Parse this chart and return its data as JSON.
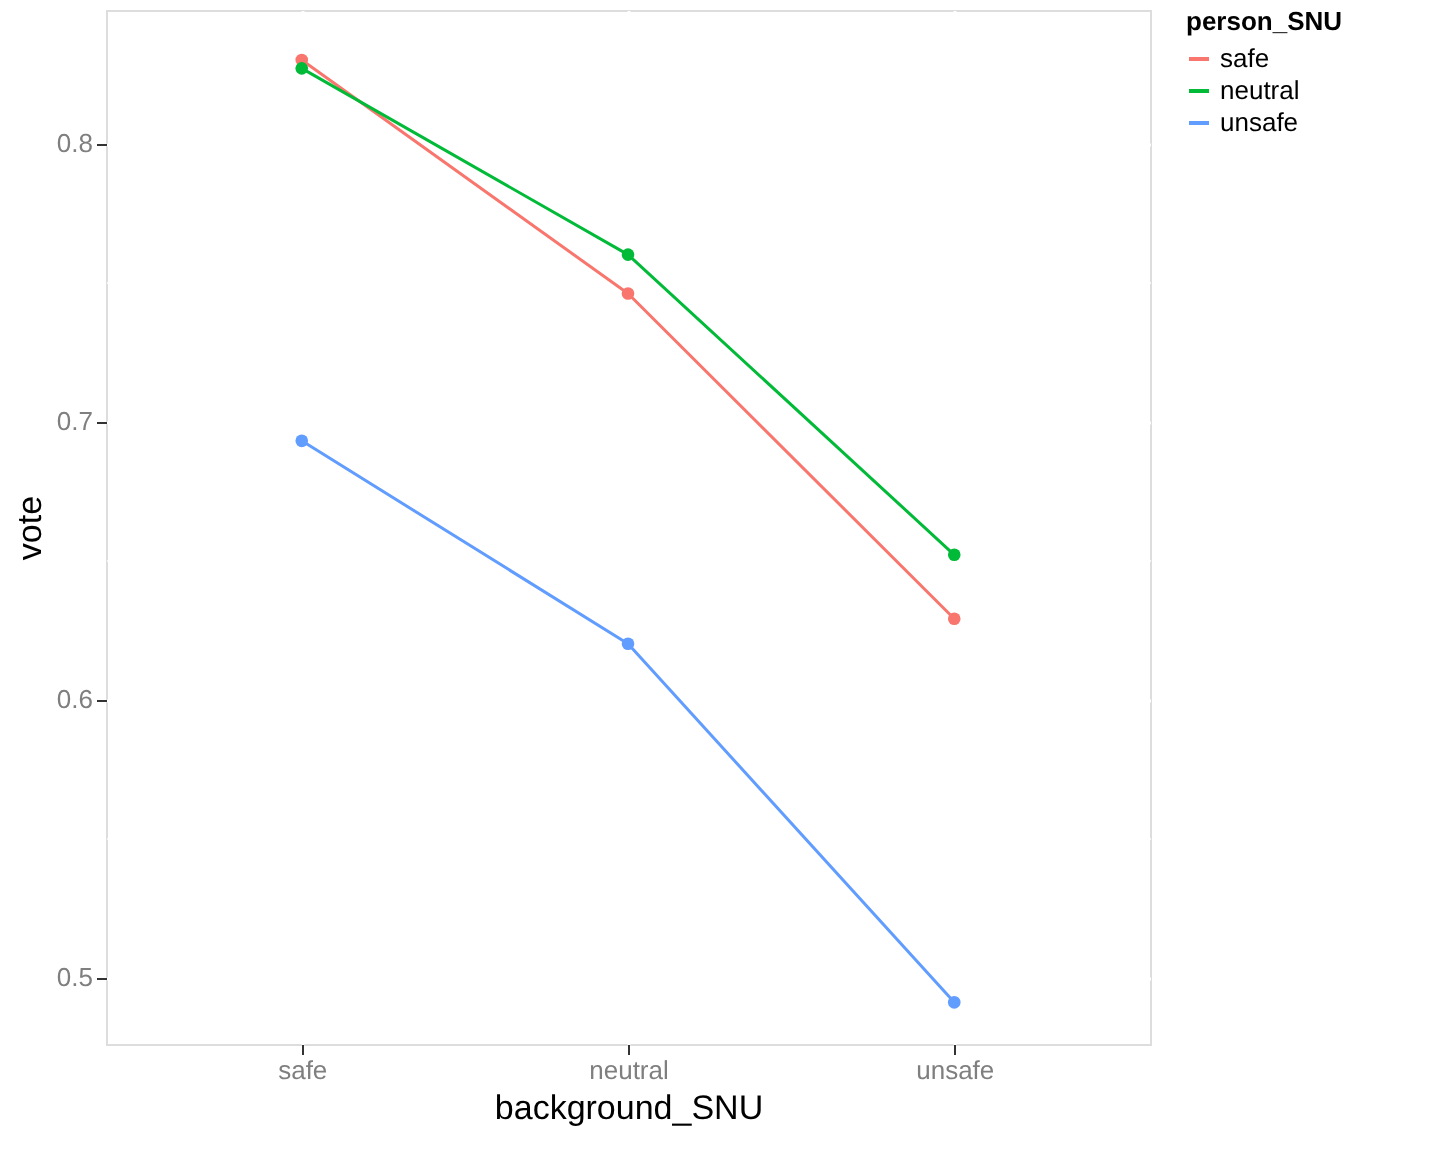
{
  "chart_data": {
    "type": "line",
    "xlabel": "background_SNU",
    "ylabel": "vote",
    "legend_title": "person_SNU",
    "categories": [
      "safe",
      "neutral",
      "unsafe"
    ],
    "series": [
      {
        "name": "safe",
        "color": "#f8766d",
        "values": [
          0.83,
          0.746,
          0.629
        ]
      },
      {
        "name": "neutral",
        "color": "#00ba38",
        "values": [
          0.827,
          0.76,
          0.652
        ]
      },
      {
        "name": "unsafe",
        "color": "#619cff",
        "values": [
          0.693,
          0.62,
          0.491
        ]
      }
    ],
    "ylim": [
      0.476,
      0.848
    ],
    "yticks": [
      0.5,
      {
        "value": 0.55,
        "label": null
      },
      0.6,
      {
        "value": 0.65,
        "label": null
      },
      0.7,
      {
        "value": 0.75,
        "label": null
      },
      0.8
    ],
    "grid": true,
    "legend": "right",
    "marker": "circle",
    "line_style": "solid"
  }
}
